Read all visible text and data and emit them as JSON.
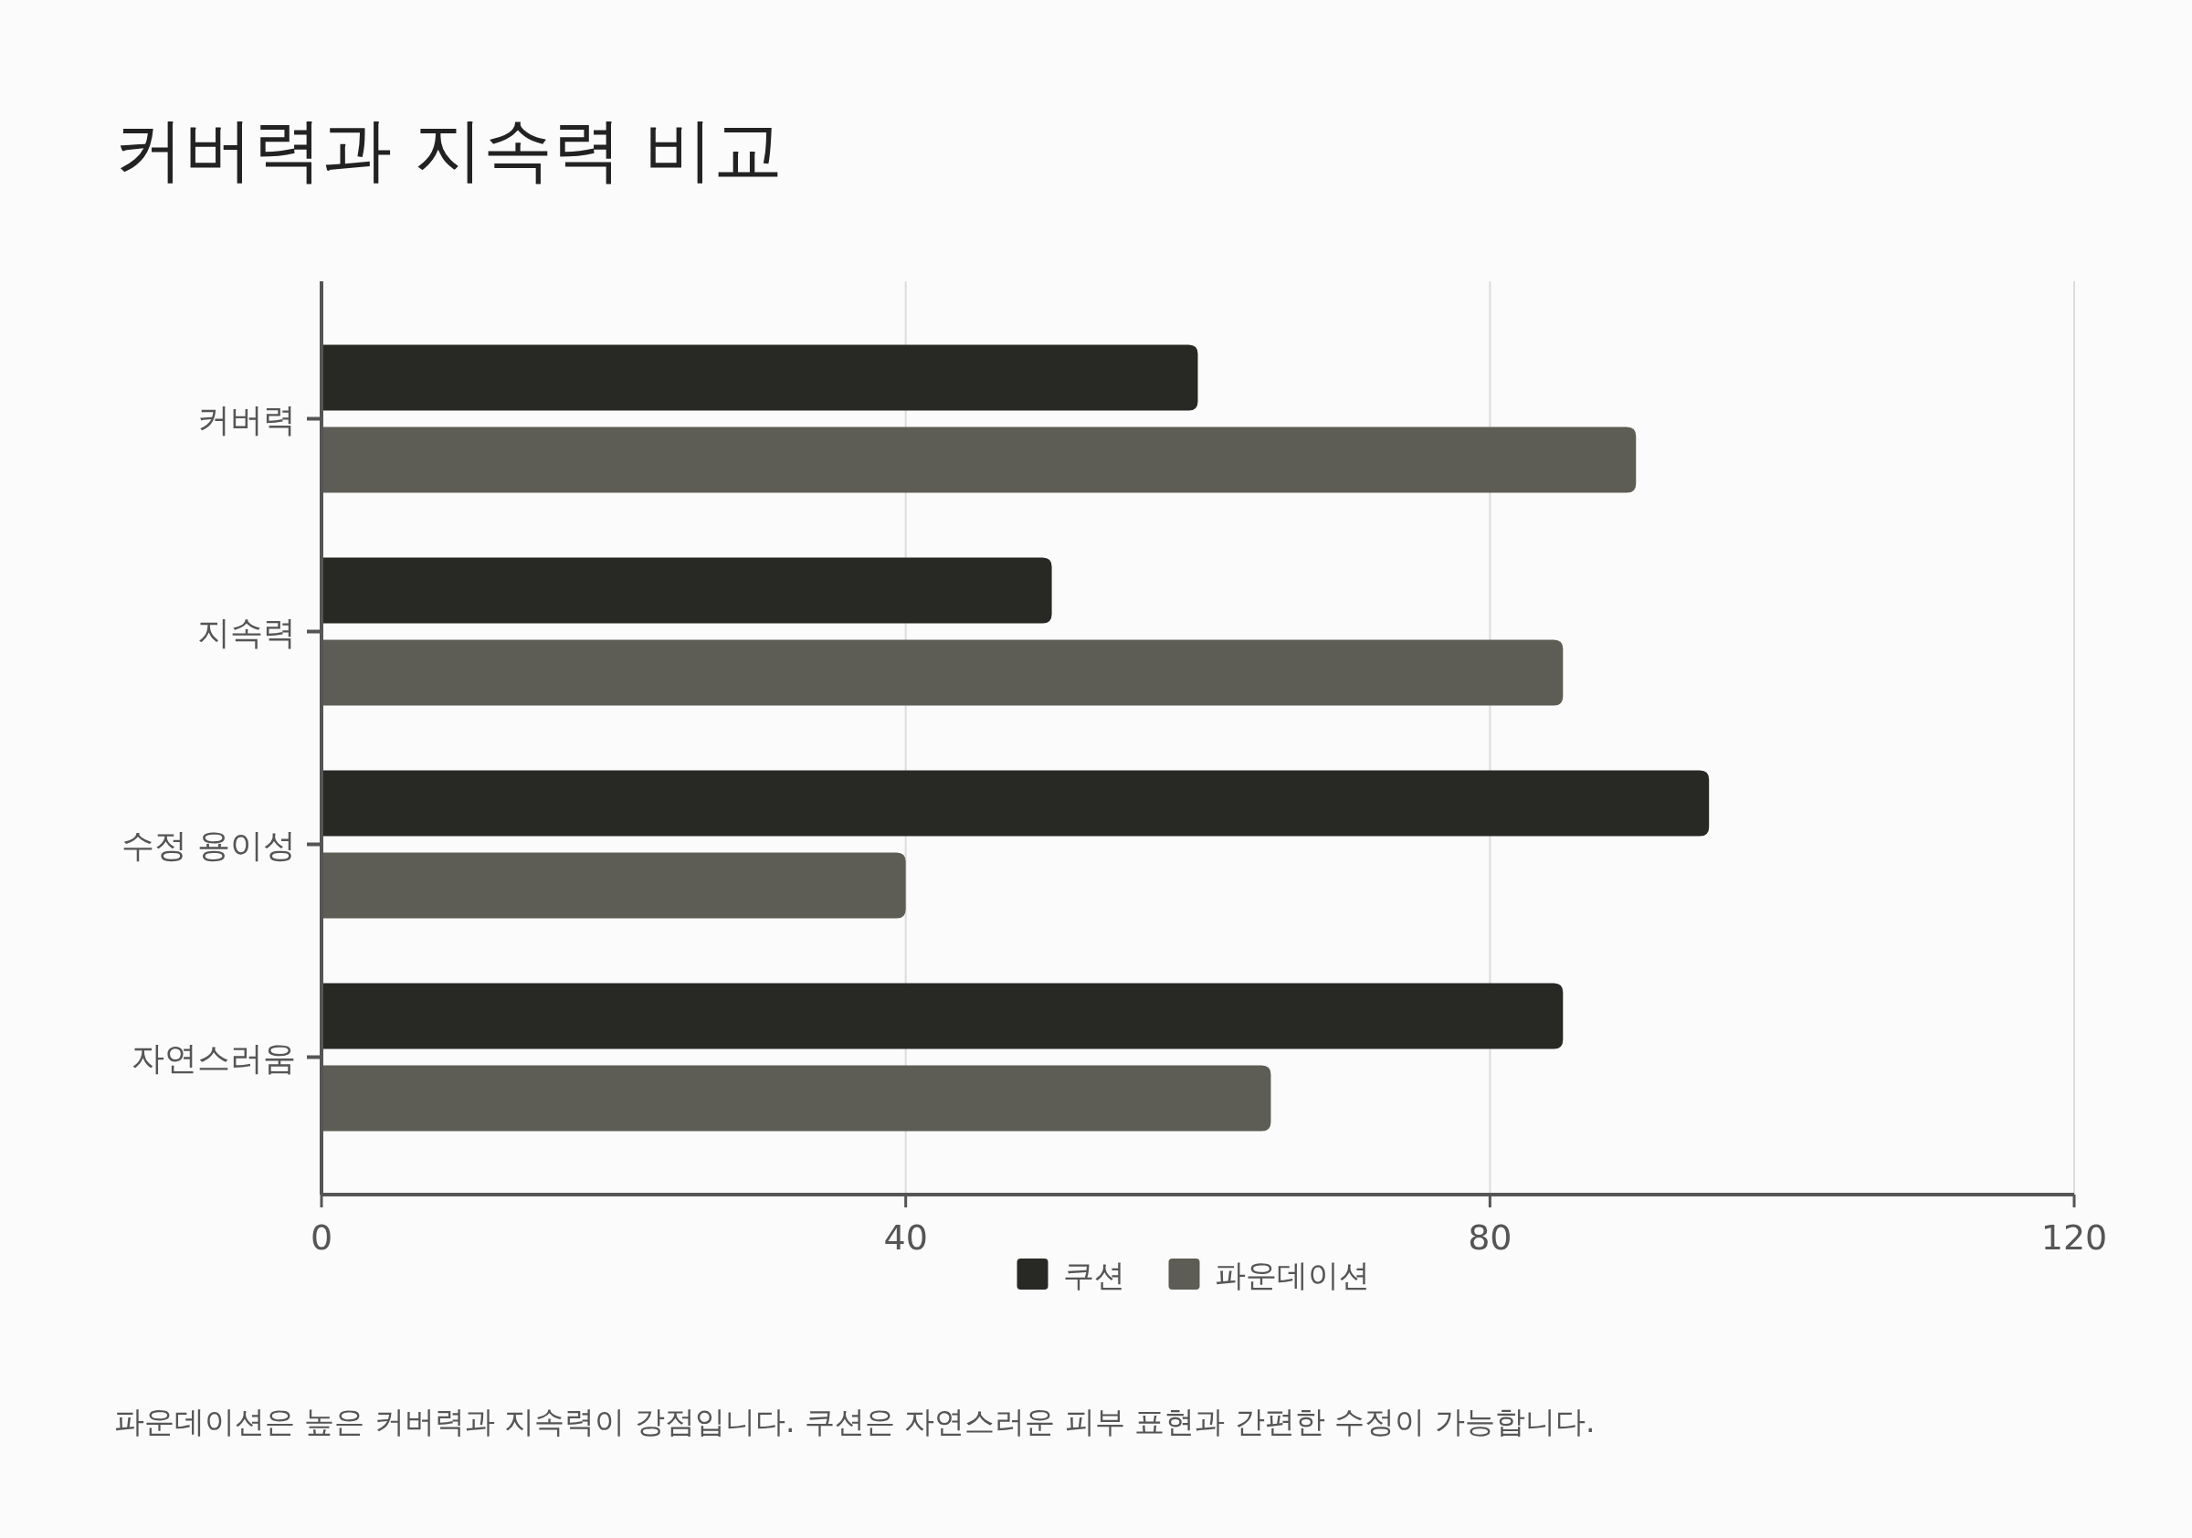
{
  "chart_data": {
    "type": "bar",
    "orientation": "horizontal",
    "title": "커버력과 지속력 비교",
    "categories": [
      "커버력",
      "지속력",
      "수정 용이성",
      "자연스러움"
    ],
    "series": [
      {
        "name": "쿠션",
        "color": "#282925",
        "values": [
          60,
          50,
          95,
          85
        ]
      },
      {
        "name": "파운데이션",
        "color": "#5d5d55",
        "values": [
          90,
          85,
          40,
          65
        ]
      }
    ],
    "xlim": [
      0,
      120
    ],
    "xticks": [
      0,
      40,
      80,
      120
    ],
    "grid": "x",
    "legend": "bottom",
    "annotations": [
      "파운데이션은 높은 커버력과 지속력이 강점입니다. 쿠션은 자연스러운 피부 표현과 간편한 수정이 가능합니다."
    ]
  }
}
